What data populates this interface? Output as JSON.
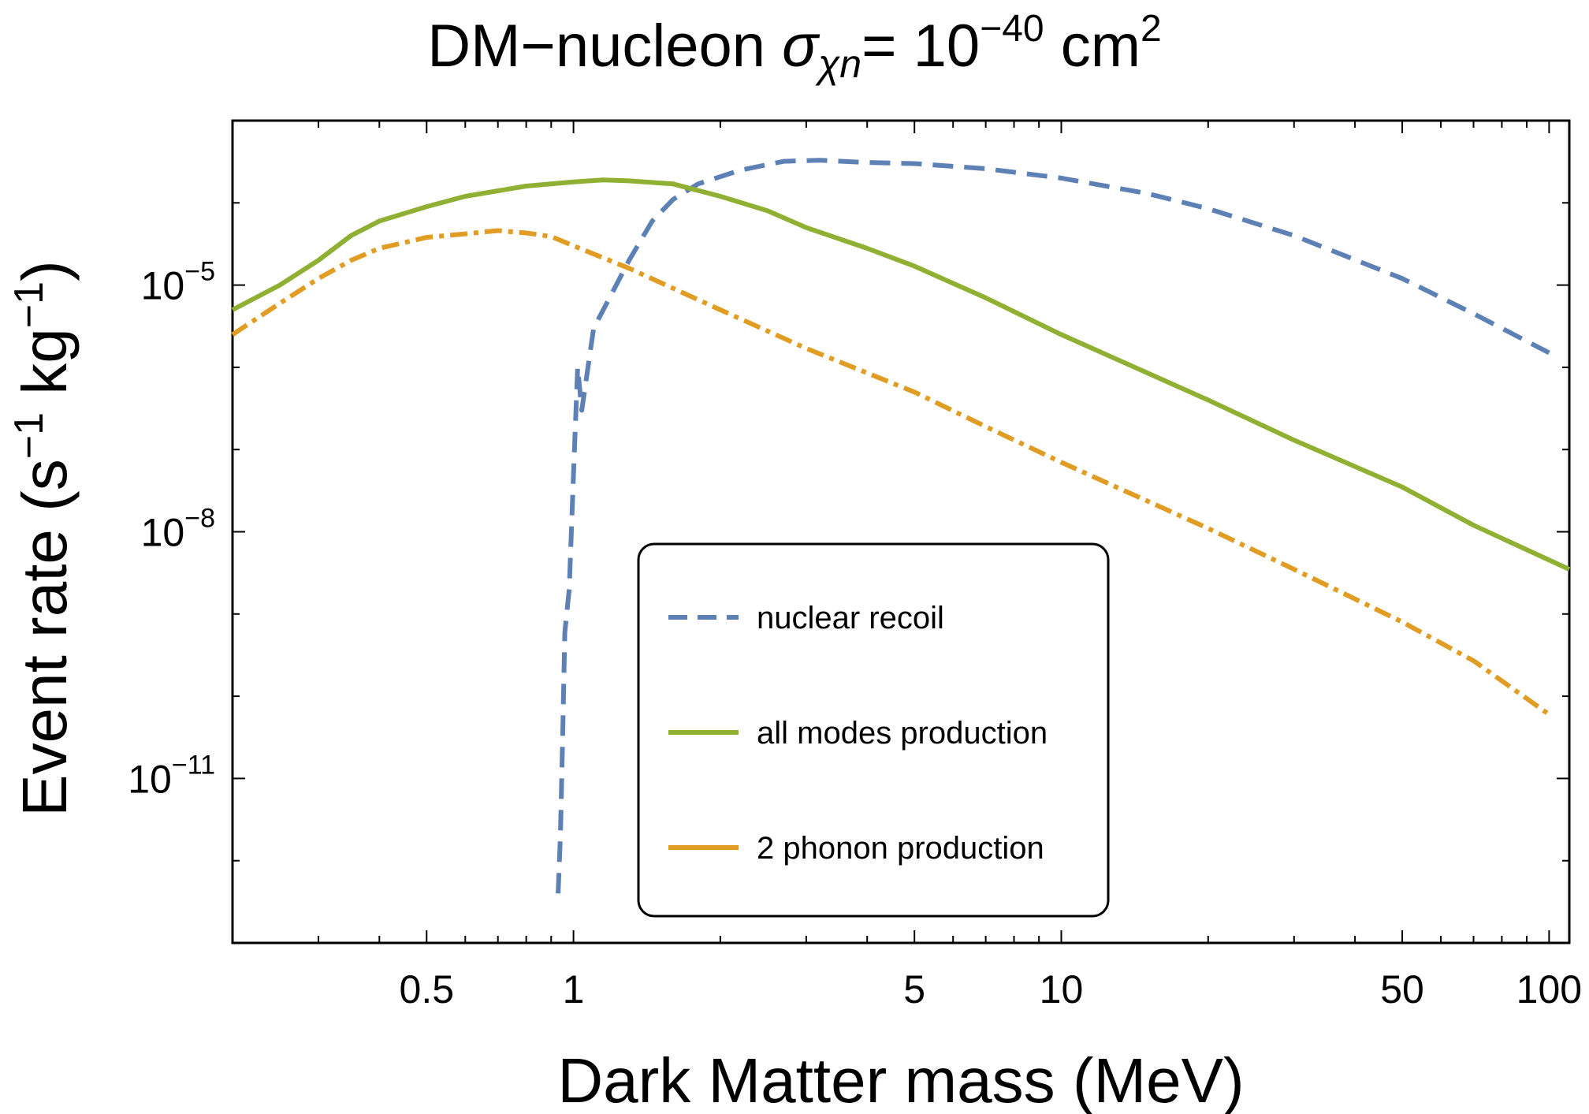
{
  "title": {
    "main": "DM−nucleon ",
    "sigma": "σ",
    "subscript": "χn",
    "rest": "= 10",
    "exponent": "−40",
    "units": " cm",
    "units_exp": "2"
  },
  "chart_data": {
    "type": "line",
    "xlabel": "Dark Matter mass (MeV)",
    "ylabel": {
      "prefix": "Event rate (s",
      "exp1": "−1",
      "mid": " kg",
      "exp2": "−1",
      "suffix": ")"
    },
    "xscale": "log",
    "yscale": "log",
    "xlim": [
      0.2,
      110
    ],
    "ylim": [
      1e-13,
      0.001
    ],
    "grid": false,
    "legend_placement": "center-bottom",
    "x_ticks": [
      {
        "value": 0.5,
        "label": "0.5"
      },
      {
        "value": 1,
        "label": "1"
      },
      {
        "value": 5,
        "label": "5"
      },
      {
        "value": 10,
        "label": "10"
      },
      {
        "value": 50,
        "label": "50"
      },
      {
        "value": 100,
        "label": "100"
      }
    ],
    "y_ticks": [
      {
        "value": 1e-05,
        "base": "10",
        "exp": "−5"
      },
      {
        "value": 1e-08,
        "base": "10",
        "exp": "−8"
      },
      {
        "value": 1e-11,
        "base": "10",
        "exp": "−11"
      }
    ],
    "series": [
      {
        "name": "nuclear recoil",
        "color": "#5e81b5",
        "style": "dashed",
        "points": [
          [
            0.93,
            4e-13
          ],
          [
            0.94,
            2e-12
          ],
          [
            0.95,
            3e-11
          ],
          [
            0.96,
            6e-10
          ],
          [
            0.98,
            2e-09
          ],
          [
            1.0,
            5e-08
          ],
          [
            1.02,
            1e-06
          ],
          [
            1.04,
            3e-07
          ],
          [
            1.1,
            3e-06
          ],
          [
            1.2,
            8e-06
          ],
          [
            1.3,
            2e-05
          ],
          [
            1.45,
            6e-05
          ],
          [
            1.6,
            0.00011
          ],
          [
            1.8,
            0.00017
          ],
          [
            2.2,
            0.00025
          ],
          [
            2.7,
            0.00032
          ],
          [
            3.2,
            0.00033
          ],
          [
            4.0,
            0.00031
          ],
          [
            5.0,
            0.0003
          ],
          [
            7.0,
            0.00026
          ],
          [
            10.0,
            0.0002
          ],
          [
            15.0,
            0.00013
          ],
          [
            20.0,
            8.5e-05
          ],
          [
            30.0,
            4e-05
          ],
          [
            50.0,
            1.2e-05
          ],
          [
            70.0,
            4.5e-06
          ],
          [
            100.0,
            1.5e-06
          ]
        ]
      },
      {
        "name": "all modes production",
        "color": "#8fb032",
        "style": "solid",
        "points": [
          [
            0.2,
            5e-06
          ],
          [
            0.25,
            1e-05
          ],
          [
            0.3,
            2e-05
          ],
          [
            0.35,
            4e-05
          ],
          [
            0.4,
            6e-05
          ],
          [
            0.5,
            9e-05
          ],
          [
            0.6,
            0.00012
          ],
          [
            0.8,
            0.00016
          ],
          [
            1.0,
            0.00018
          ],
          [
            1.15,
            0.00019
          ],
          [
            1.3,
            0.000185
          ],
          [
            1.6,
            0.00017
          ],
          [
            2.0,
            0.00012
          ],
          [
            2.5,
            8e-05
          ],
          [
            3.0,
            5e-05
          ],
          [
            4.0,
            2.8e-05
          ],
          [
            5.0,
            1.7e-05
          ],
          [
            7.0,
            7e-06
          ],
          [
            10.0,
            2.5e-06
          ],
          [
            20.0,
            4e-07
          ],
          [
            30.0,
            1.3e-07
          ],
          [
            50.0,
            3.5e-08
          ],
          [
            70.0,
            1.2e-08
          ],
          [
            110.0,
            3.5e-09
          ]
        ]
      },
      {
        "name": "2 phonon production",
        "color": "#e19c24",
        "style": "dotdashed",
        "points": [
          [
            0.2,
            2.5e-06
          ],
          [
            0.25,
            6e-06
          ],
          [
            0.3,
            1.2e-05
          ],
          [
            0.35,
            2e-05
          ],
          [
            0.4,
            2.8e-05
          ],
          [
            0.5,
            3.8e-05
          ],
          [
            0.6,
            4.2e-05
          ],
          [
            0.7,
            4.6e-05
          ],
          [
            0.8,
            4.3e-05
          ],
          [
            0.9,
            3.9e-05
          ],
          [
            1.0,
            3e-05
          ],
          [
            1.3,
            1.6e-05
          ],
          [
            2.0,
            5e-06
          ],
          [
            3.0,
            1.7e-06
          ],
          [
            5.0,
            5e-07
          ],
          [
            7.0,
            1.9e-07
          ],
          [
            10.0,
            7e-08
          ],
          [
            20.0,
            1.1e-08
          ],
          [
            30.0,
            3.5e-09
          ],
          [
            50.0,
            8e-10
          ],
          [
            70.0,
            2.7e-10
          ],
          [
            100.0,
            6e-11
          ]
        ]
      }
    ]
  }
}
